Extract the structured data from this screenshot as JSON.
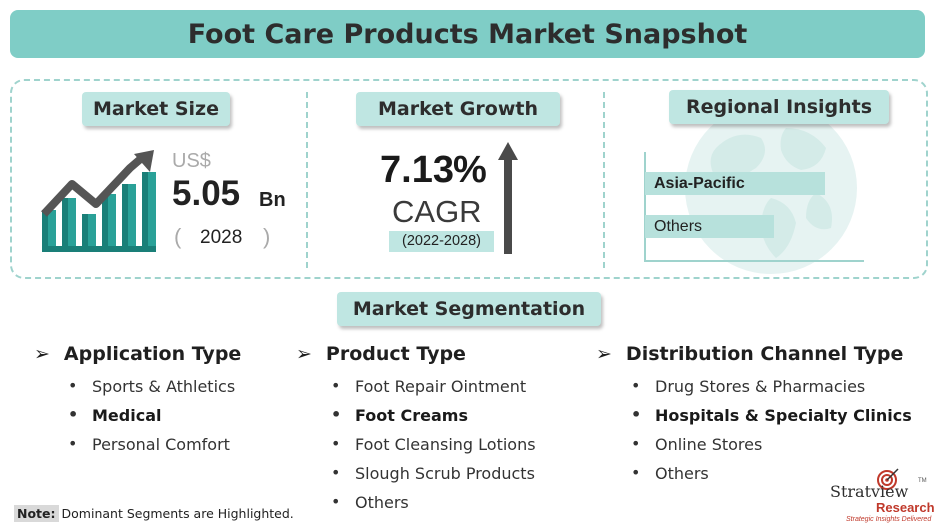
{
  "title": "Foot Care Products Market Snapshot",
  "market_size": {
    "heading": "Market Size",
    "currency": "US$",
    "value": "5.05",
    "unit": "Bn",
    "year_open": "(",
    "year": "2028",
    "year_close": ")"
  },
  "market_growth": {
    "heading": "Market Growth",
    "value": "7.13",
    "percent": "%",
    "label": "CAGR",
    "period": "(2022-2028)"
  },
  "regional": {
    "heading": "Regional Insights",
    "bars": [
      {
        "label": "Asia-Pacific",
        "highlighted": true
      },
      {
        "label": "Others",
        "highlighted": false
      }
    ]
  },
  "segmentation": {
    "heading": "Market Segmentation",
    "groups": [
      {
        "title": "Application Type",
        "items": [
          {
            "text": "Sports & Athletics",
            "highlighted": false
          },
          {
            "text": "Medical",
            "highlighted": true
          },
          {
            "text": "Personal Comfort",
            "highlighted": false
          }
        ]
      },
      {
        "title": "Product Type",
        "items": [
          {
            "text": "Foot Repair Ointment",
            "highlighted": false
          },
          {
            "text": "Foot Creams",
            "highlighted": true
          },
          {
            "text": "Foot Cleansing Lotions",
            "highlighted": false
          },
          {
            "text": "Slough Scrub Products",
            "highlighted": false
          },
          {
            "text": "Others",
            "highlighted": false
          }
        ]
      },
      {
        "title": "Distribution Channel Type",
        "items": [
          {
            "text": "Drug Stores & Pharmacies",
            "highlighted": false
          },
          {
            "text": "Hospitals & Specialty Clinics",
            "highlighted": true
          },
          {
            "text": "Online Stores",
            "highlighted": false
          },
          {
            "text": "Others",
            "highlighted": false
          }
        ]
      }
    ]
  },
  "note": {
    "label": "Note:",
    "text": "Dominant Segments are Highlighted."
  },
  "logo": {
    "name": "Stratview",
    "sub": "Research",
    "tagline": "Strategic Insights Delivered",
    "tm": "TM"
  },
  "colors": {
    "accent": "#7fcdc6",
    "pill": "#bfe6e2",
    "bar_teal": "#2aa198",
    "logo_red": "#c0392b"
  }
}
